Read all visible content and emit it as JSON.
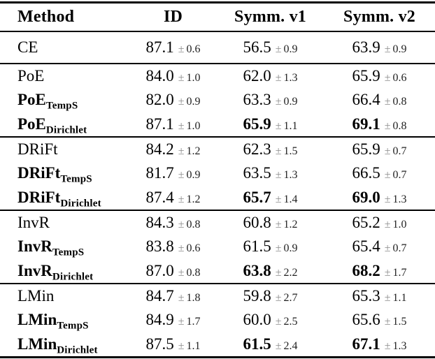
{
  "pm_symbol": "±",
  "colors": {
    "background": "#ffffff",
    "rule": "#000000",
    "text": "#000000",
    "pm_sign": "#8a8a8a",
    "err_text": "#1f1f1f"
  },
  "table": {
    "columns": [
      "Method",
      "ID",
      "Symm. v1",
      "Symm. v2"
    ],
    "groups": [
      {
        "rows": [
          {
            "method": {
              "base": "CE",
              "subscript": "",
              "bold": false
            },
            "cells": [
              {
                "value": "87.1",
                "err": "0.6",
                "bold": false
              },
              {
                "value": "56.5",
                "err": "0.9",
                "bold": false
              },
              {
                "value": "63.9",
                "err": "0.9",
                "bold": false
              }
            ]
          }
        ]
      },
      {
        "rows": [
          {
            "method": {
              "base": "PoE",
              "subscript": "",
              "bold": false
            },
            "cells": [
              {
                "value": "84.0",
                "err": "1.0",
                "bold": false
              },
              {
                "value": "62.0",
                "err": "1.3",
                "bold": false
              },
              {
                "value": "65.9",
                "err": "0.6",
                "bold": false
              }
            ]
          },
          {
            "method": {
              "base": "PoE",
              "subscript": "TempS",
              "bold": true
            },
            "cells": [
              {
                "value": "82.0",
                "err": "0.9",
                "bold": false
              },
              {
                "value": "63.3",
                "err": "0.9",
                "bold": false
              },
              {
                "value": "66.4",
                "err": "0.8",
                "bold": false
              }
            ]
          },
          {
            "method": {
              "base": "PoE",
              "subscript": "Dirichlet",
              "bold": true
            },
            "cells": [
              {
                "value": "87.1",
                "err": "1.0",
                "bold": false
              },
              {
                "value": "65.9",
                "err": "1.1",
                "bold": true
              },
              {
                "value": "69.1",
                "err": "0.8",
                "bold": true
              }
            ]
          }
        ]
      },
      {
        "rows": [
          {
            "method": {
              "base": "DRiFt",
              "subscript": "",
              "bold": false
            },
            "cells": [
              {
                "value": "84.2",
                "err": "1.2",
                "bold": false
              },
              {
                "value": "62.3",
                "err": "1.5",
                "bold": false
              },
              {
                "value": "65.9",
                "err": "0.7",
                "bold": false
              }
            ]
          },
          {
            "method": {
              "base": "DRiFt",
              "subscript": "TempS",
              "bold": true
            },
            "cells": [
              {
                "value": "81.7",
                "err": "0.9",
                "bold": false
              },
              {
                "value": "63.5",
                "err": "1.3",
                "bold": false
              },
              {
                "value": "66.5",
                "err": "0.7",
                "bold": false
              }
            ]
          },
          {
            "method": {
              "base": "DRiFt",
              "subscript": "Dirichlet",
              "bold": true
            },
            "cells": [
              {
                "value": "87.4",
                "err": "1.2",
                "bold": false
              },
              {
                "value": "65.7",
                "err": "1.4",
                "bold": true
              },
              {
                "value": "69.0",
                "err": "1.3",
                "bold": true
              }
            ]
          }
        ]
      },
      {
        "rows": [
          {
            "method": {
              "base": "InvR",
              "subscript": "",
              "bold": false
            },
            "cells": [
              {
                "value": "84.3",
                "err": "0.8",
                "bold": false
              },
              {
                "value": "60.8",
                "err": "1.2",
                "bold": false
              },
              {
                "value": "65.2",
                "err": "1.0",
                "bold": false
              }
            ]
          },
          {
            "method": {
              "base": "InvR",
              "subscript": "TempS",
              "bold": true
            },
            "cells": [
              {
                "value": "83.8",
                "err": "0.6",
                "bold": false
              },
              {
                "value": "61.5",
                "err": "0.9",
                "bold": false
              },
              {
                "value": "65.4",
                "err": "0.7",
                "bold": false
              }
            ]
          },
          {
            "method": {
              "base": "InvR",
              "subscript": "Dirichlet",
              "bold": true
            },
            "cells": [
              {
                "value": "87.0",
                "err": "0.8",
                "bold": false
              },
              {
                "value": "63.8",
                "err": "2.2",
                "bold": true
              },
              {
                "value": "68.2",
                "err": "1.7",
                "bold": true
              }
            ]
          }
        ]
      },
      {
        "rows": [
          {
            "method": {
              "base": "LMin",
              "subscript": "",
              "bold": false
            },
            "cells": [
              {
                "value": "84.7",
                "err": "1.8",
                "bold": false
              },
              {
                "value": "59.8",
                "err": "2.7",
                "bold": false
              },
              {
                "value": "65.3",
                "err": "1.1",
                "bold": false
              }
            ]
          },
          {
            "method": {
              "base": "LMin",
              "subscript": "TempS",
              "bold": true
            },
            "cells": [
              {
                "value": "84.9",
                "err": "1.7",
                "bold": false
              },
              {
                "value": "60.0",
                "err": "2.5",
                "bold": false
              },
              {
                "value": "65.6",
                "err": "1.5",
                "bold": false
              }
            ]
          },
          {
            "method": {
              "base": "LMin",
              "subscript": "Dirichlet",
              "bold": true
            },
            "cells": [
              {
                "value": "87.5",
                "err": "1.1",
                "bold": false
              },
              {
                "value": "61.5",
                "err": "2.4",
                "bold": true
              },
              {
                "value": "67.1",
                "err": "1.3",
                "bold": true
              }
            ]
          }
        ]
      }
    ]
  }
}
